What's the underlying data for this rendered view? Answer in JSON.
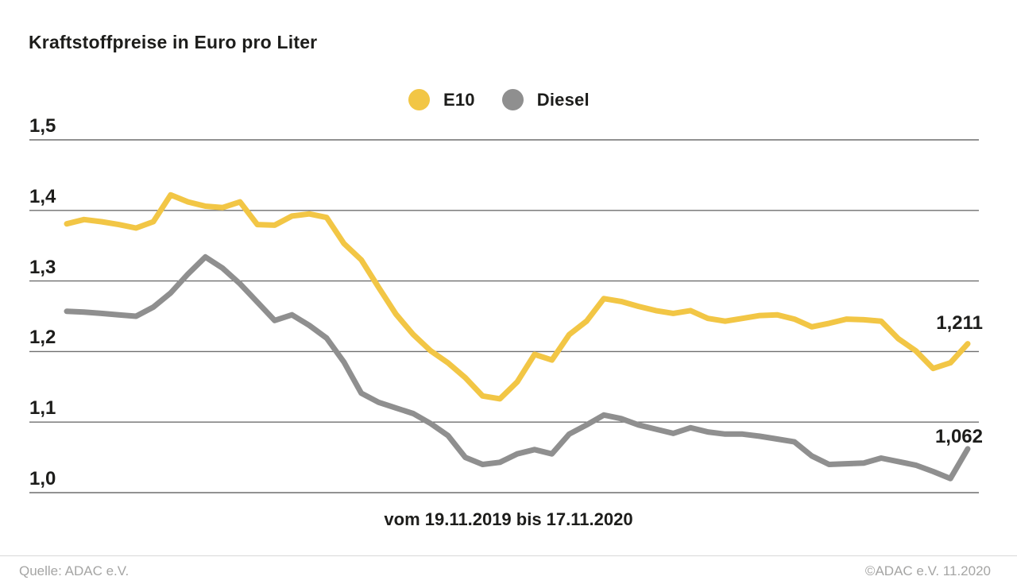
{
  "page": {
    "title": "Kraftstoffpreise in Euro pro Liter",
    "footer": {
      "source": "Quelle: ADAC e.V.",
      "copyright": "©ADAC e.V. 11.2020"
    }
  },
  "chart_data": {
    "type": "line",
    "title": "Kraftstoffpreise in Euro pro Liter",
    "xlabel": "vom 19.11.2019 bis 17.11.2020",
    "ylabel": "Euro pro Liter",
    "ylim": [
      1.0,
      1.5
    ],
    "grid": true,
    "legend_position": "top-center",
    "colors": {
      "e10": "#F2C645",
      "diesel": "#8F8F8F",
      "gridline": "#6f6f6f",
      "text": "#1d1d1b",
      "footer_text": "#a5a5a4"
    },
    "y_ticks": [
      {
        "value": 1.5,
        "label": "1,5"
      },
      {
        "value": 1.4,
        "label": "1,4"
      },
      {
        "value": 1.3,
        "label": "1,3"
      },
      {
        "value": 1.2,
        "label": "1,2"
      },
      {
        "value": 1.1,
        "label": "1,1"
      },
      {
        "value": 1.0,
        "label": "1,0"
      }
    ],
    "legend": [
      {
        "name": "E10",
        "color": "#F2C645"
      },
      {
        "name": "Diesel",
        "color": "#8F8F8F"
      }
    ],
    "x_period": {
      "start": "19.11.2019",
      "end": "17.11.2020",
      "interval": "weekly",
      "points": 53
    },
    "series": [
      {
        "name": "E10",
        "color": "#F2C645",
        "end_label": "1,211",
        "end_value": 1.211,
        "values": [
          1.381,
          1.387,
          1.384,
          1.38,
          1.375,
          1.384,
          1.422,
          1.412,
          1.406,
          1.404,
          1.412,
          1.38,
          1.379,
          1.392,
          1.395,
          1.39,
          1.353,
          1.33,
          1.291,
          1.253,
          1.224,
          1.201,
          1.184,
          1.163,
          1.137,
          1.133,
          1.157,
          1.196,
          1.188,
          1.224,
          1.243,
          1.275,
          1.271,
          1.264,
          1.258,
          1.254,
          1.258,
          1.247,
          1.243,
          1.247,
          1.251,
          1.252,
          1.246,
          1.235,
          1.24,
          1.246,
          1.245,
          1.243,
          1.218,
          1.201,
          1.176,
          1.184,
          1.211
        ]
      },
      {
        "name": "Diesel",
        "color": "#8F8F8F",
        "end_label": "1,062",
        "end_value": 1.062,
        "values": [
          1.257,
          1.256,
          1.254,
          1.252,
          1.25,
          1.263,
          1.283,
          1.31,
          1.334,
          1.318,
          1.296,
          1.27,
          1.244,
          1.252,
          1.237,
          1.219,
          1.185,
          1.141,
          1.128,
          1.12,
          1.112,
          1.098,
          1.081,
          1.05,
          1.04,
          1.043,
          1.055,
          1.061,
          1.055,
          1.083,
          1.096,
          1.11,
          1.105,
          1.096,
          1.09,
          1.084,
          1.092,
          1.086,
          1.083,
          1.083,
          1.08,
          1.076,
          1.072,
          1.052,
          1.04,
          1.041,
          1.042,
          1.049,
          1.044,
          1.039,
          1.03,
          1.02,
          1.062
        ]
      }
    ]
  }
}
